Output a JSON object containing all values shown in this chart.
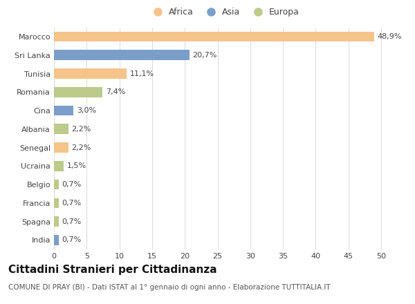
{
  "categories": [
    "Marocco",
    "Sri Lanka",
    "Tunisia",
    "Romania",
    "Cina",
    "Albania",
    "Senegal",
    "Ucraina",
    "Belgio",
    "Francia",
    "Spagna",
    "India"
  ],
  "values": [
    48.9,
    20.7,
    11.1,
    7.4,
    3.0,
    2.2,
    2.2,
    1.5,
    0.7,
    0.7,
    0.7,
    0.7
  ],
  "labels": [
    "48,9%",
    "20,7%",
    "11,1%",
    "7,4%",
    "3,0%",
    "2,2%",
    "2,2%",
    "1,5%",
    "0,7%",
    "0,7%",
    "0,7%",
    "0,7%"
  ],
  "continents": [
    "Africa",
    "Asia",
    "Africa",
    "Europa",
    "Asia",
    "Europa",
    "Africa",
    "Europa",
    "Europa",
    "Europa",
    "Europa",
    "Asia"
  ],
  "colors": {
    "Africa": "#F5C48A",
    "Asia": "#7B9EC9",
    "Europa": "#BCCA8A"
  },
  "xlim": [
    0,
    52
  ],
  "xticks": [
    0,
    5,
    10,
    15,
    20,
    25,
    30,
    35,
    40,
    45,
    50
  ],
  "title": "Cittadini Stranieri per Cittadinanza",
  "subtitle": "COMUNE DI PRAY (BI) - Dati ISTAT al 1° gennaio di ogni anno - Elaborazione TUTTITALIA.IT",
  "title_fontsize": 11,
  "subtitle_fontsize": 7.5,
  "label_fontsize": 8,
  "tick_fontsize": 8,
  "legend_fontsize": 9,
  "background_color": "#FFFFFF",
  "grid_color": "#DDDDDD",
  "bar_height": 0.55
}
